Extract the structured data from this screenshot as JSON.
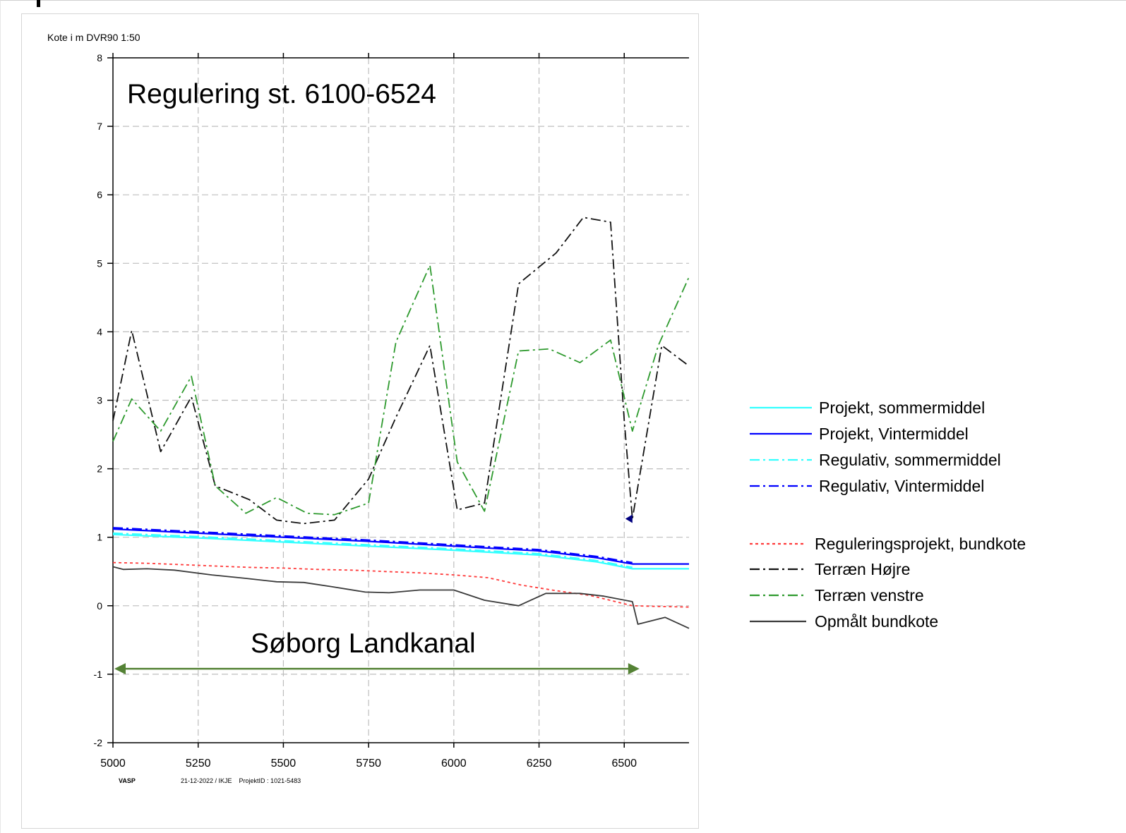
{
  "chart_data": {
    "type": "line",
    "ylabel": "Kote i m DVR90 1:50",
    "title": "Regulering st. 6100-6524",
    "annotation": "Søborg Landkanal",
    "footer": {
      "brand": "VASP",
      "info": "21-12-2022 / IKJE    ProjektID : 1021-5483"
    },
    "xlim": [
      5000,
      6690
    ],
    "ylim": [
      -2,
      8
    ],
    "xticks": [
      5000,
      5250,
      5500,
      5750,
      6000,
      6250,
      6500
    ],
    "yticks": [
      -2,
      -1,
      0,
      1,
      2,
      3,
      4,
      5,
      6,
      7,
      8
    ],
    "grid": true,
    "legend_position": "right",
    "arrow": {
      "x": [
        5000,
        6524
      ],
      "y": -0.92,
      "color": "#548235"
    },
    "series": [
      {
        "name": "Projekt, sommermiddel",
        "color": "#33ffff",
        "dash": "solid",
        "width": 2.2,
        "x": [
          5000,
          5250,
          5500,
          5750,
          6000,
          6250,
          6420,
          6524,
          6690
        ],
        "y": [
          1.04,
          0.99,
          0.93,
          0.87,
          0.81,
          0.74,
          0.64,
          0.54,
          0.54
        ]
      },
      {
        "name": "Projekt, Vintermiddel",
        "color": "#0000ff",
        "dash": "solid",
        "width": 2.2,
        "x": [
          5000,
          5250,
          5500,
          5750,
          6000,
          6250,
          6420,
          6524,
          6690
        ],
        "y": [
          1.12,
          1.06,
          1.0,
          0.94,
          0.87,
          0.8,
          0.7,
          0.61,
          0.61
        ]
      },
      {
        "name": "Regulativ, sommermiddel",
        "color": "#33ffff",
        "dash": "dashdot",
        "width": 2,
        "x": [
          5000,
          5250,
          5500,
          5750,
          6000,
          6250,
          6420,
          6524
        ],
        "y": [
          1.06,
          1.01,
          0.95,
          0.89,
          0.83,
          0.76,
          0.66,
          0.56
        ]
      },
      {
        "name": "Regulativ, Vintermiddel",
        "color": "#0000ff",
        "dash": "dashdot",
        "width": 2,
        "x": [
          5000,
          5250,
          5500,
          5750,
          6000,
          6250,
          6420,
          6524
        ],
        "y": [
          1.14,
          1.08,
          1.02,
          0.96,
          0.89,
          0.82,
          0.72,
          0.63
        ]
      },
      {
        "name": "Reguleringsprojekt, bundkote",
        "color": "#ff3b3b",
        "dash": "dotted",
        "width": 1.8,
        "x": [
          5000,
          5100,
          5200,
          5300,
          5400,
          5500,
          5600,
          5700,
          5800,
          5900,
          6000,
          6100,
          6200,
          6300,
          6400,
          6524,
          6600,
          6690
        ],
        "y": [
          0.63,
          0.62,
          0.6,
          0.58,
          0.56,
          0.55,
          0.53,
          0.52,
          0.5,
          0.48,
          0.45,
          0.41,
          0.3,
          0.22,
          0.15,
          0.0,
          -0.01,
          -0.02
        ]
      },
      {
        "name": "Terræn Højre",
        "color": "#111111",
        "dash": "dashdot",
        "width": 1.8,
        "x": [
          5000,
          5055,
          5140,
          5230,
          5300,
          5400,
          5480,
          5560,
          5650,
          5750,
          5830,
          5930,
          6010,
          6090,
          6190,
          6300,
          6380,
          6460,
          6500,
          6524,
          6610,
          6690
        ],
        "y": [
          2.7,
          4.02,
          2.25,
          3.05,
          1.75,
          1.55,
          1.25,
          1.2,
          1.25,
          1.85,
          2.75,
          3.8,
          1.4,
          1.5,
          4.7,
          5.15,
          5.67,
          5.6,
          2.7,
          1.27,
          3.8,
          3.5
        ]
      },
      {
        "name": "Terræn venstre",
        "color": "#2e9a2e",
        "dash": "dashdot",
        "width": 1.8,
        "x": [
          5000,
          5055,
          5140,
          5230,
          5300,
          5390,
          5480,
          5570,
          5650,
          5750,
          5830,
          5930,
          6010,
          6090,
          6190,
          6280,
          6370,
          6460,
          6524,
          6600,
          6690
        ],
        "y": [
          2.4,
          3.02,
          2.55,
          3.35,
          1.75,
          1.35,
          1.58,
          1.35,
          1.33,
          1.5,
          3.85,
          4.97,
          2.1,
          1.38,
          3.72,
          3.75,
          3.55,
          3.88,
          2.55,
          3.8,
          4.8
        ]
      },
      {
        "name": "Opmålt bundkote",
        "color": "#3a3a3a",
        "dash": "solid",
        "width": 1.8,
        "x": [
          5000,
          5030,
          5100,
          5180,
          5290,
          5390,
          5480,
          5560,
          5640,
          5740,
          5810,
          5900,
          6000,
          6090,
          6190,
          6270,
          6370,
          6440,
          6524,
          6540,
          6620,
          6690
        ],
        "y": [
          0.57,
          0.53,
          0.54,
          0.52,
          0.45,
          0.4,
          0.35,
          0.34,
          0.28,
          0.2,
          0.19,
          0.23,
          0.23,
          0.08,
          0.0,
          0.18,
          0.18,
          0.14,
          0.06,
          -0.27,
          -0.17,
          -0.33
        ]
      }
    ],
    "markers": [
      {
        "x": 6524,
        "y": 1.27,
        "shape": "triangle-left",
        "color": "#000080"
      }
    ]
  }
}
